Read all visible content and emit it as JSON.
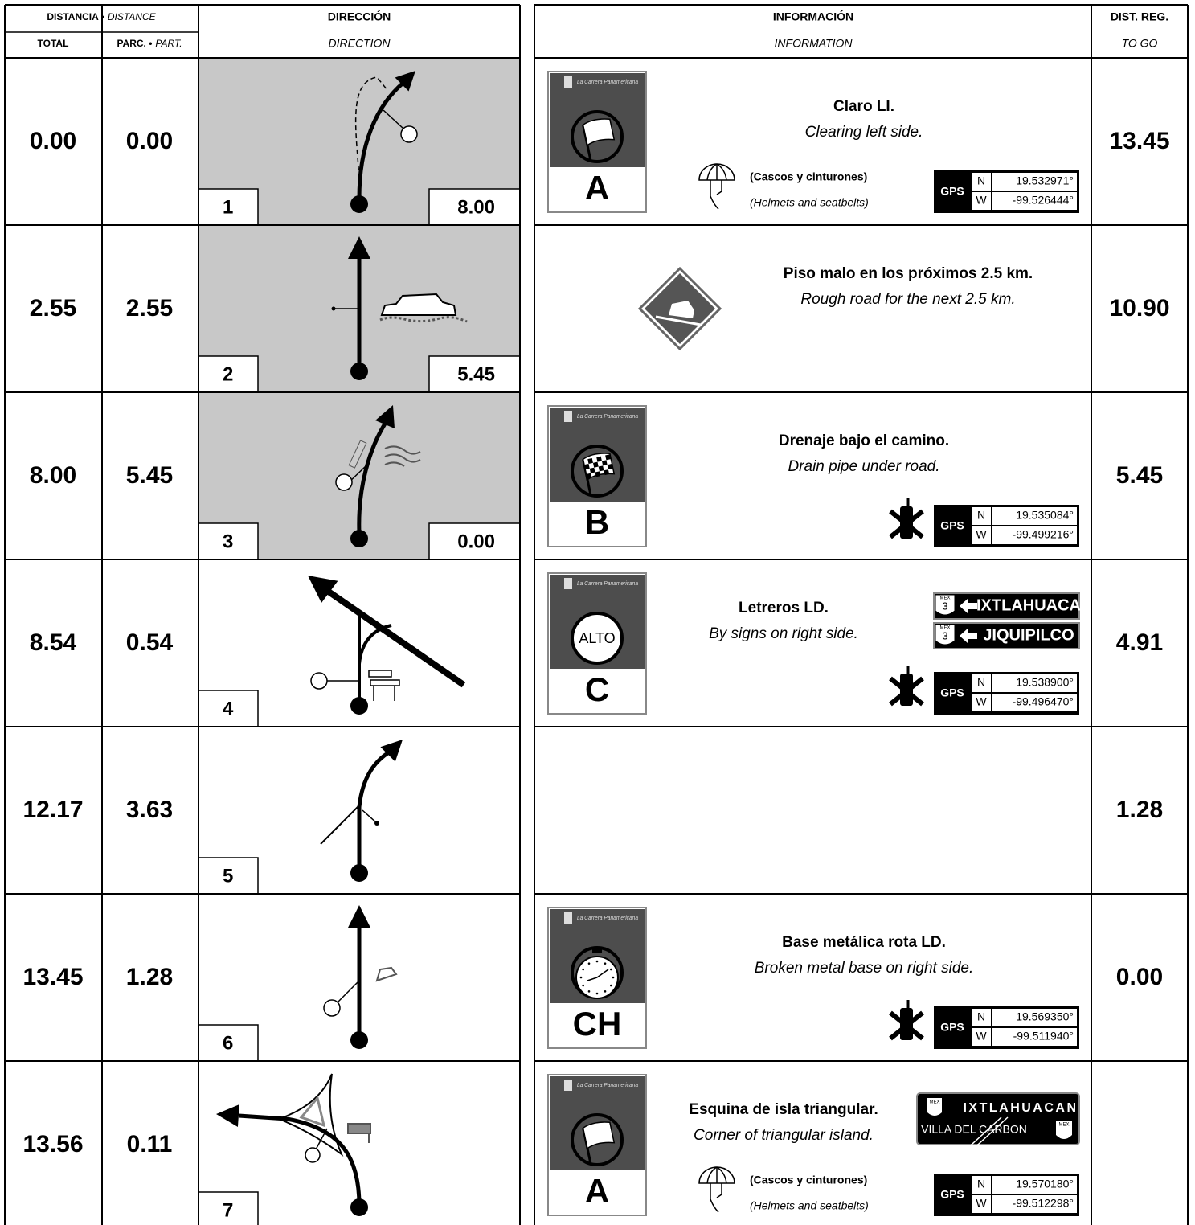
{
  "header": {
    "distance": "DISTANCIA •",
    "distance_en": "DISTANCE",
    "total": "TOTAL",
    "partial": "PARC. •",
    "partial_en": "PART.",
    "direction": "DIRECCIÓN",
    "direction_en": "DIRECTION",
    "information": "INFORMACIÓN",
    "information_en": "INFORMATION",
    "dist_reg": "DIST. REG.",
    "to_go": "TO GO"
  },
  "labels": {
    "card_logo": "La Carrera Panamericana",
    "gps": "GPS",
    "north": "N",
    "west": "W",
    "stop": "ALTO",
    "mex": "MEX"
  },
  "rows": [
    {
      "total": "0.00",
      "partial": "0.00",
      "number": "1",
      "box": "8.00",
      "title": "Claro LI.",
      "subtitle": "Clearing left side.",
      "to_go": "13.45",
      "card": "A",
      "note": "(Cascos y cinturones)",
      "note_en": "(Helmets and seatbelts)",
      "gps_n": "19.532971°",
      "gps_w": "-99.526444°"
    },
    {
      "total": "2.55",
      "partial": "2.55",
      "number": "2",
      "box": "5.45",
      "title": "Piso malo en los próximos 2.5 km.",
      "subtitle": "Rough road for the next 2.5 km.",
      "to_go": "10.90"
    },
    {
      "total": "8.00",
      "partial": "5.45",
      "number": "3",
      "box": "0.00",
      "title": "Drenaje bajo el camino.",
      "subtitle": "Drain pipe under road.",
      "to_go": "5.45",
      "card": "B",
      "gps_n": "19.535084°",
      "gps_w": "-99.499216°"
    },
    {
      "total": "8.54",
      "partial": "0.54",
      "number": "4",
      "title": "Letreros LD.",
      "subtitle": "By signs on right side.",
      "to_go": "4.91",
      "card": "C",
      "gps_n": "19.538900°",
      "gps_w": "-99.496470°",
      "signs": [
        {
          "route": "3",
          "text": "IXTLAHUACA"
        },
        {
          "route": "3",
          "text": "JIQUIPILCO"
        }
      ]
    },
    {
      "total": "12.17",
      "partial": "3.63",
      "number": "5",
      "to_go": "1.28"
    },
    {
      "total": "13.45",
      "partial": "1.28",
      "number": "6",
      "title": "Base metálica rota LD.",
      "subtitle": "Broken metal base on right side.",
      "to_go": "0.00",
      "card": "CH",
      "gps_n": "19.569350°",
      "gps_w": "-99.511940°"
    },
    {
      "total": "13.56",
      "partial": "0.11",
      "number": "7",
      "title": "Esquina de isla triangular.",
      "subtitle": "Corner of triangular island.",
      "card": "A",
      "note": "(Cascos y cinturones)",
      "note_en": "(Helmets and seatbelts)",
      "gps_n": "19.570180°",
      "gps_w": "-99.512298°",
      "junction_sign": [
        "IXTLAHUACAN",
        "VILLA DEL CARBON"
      ]
    }
  ]
}
